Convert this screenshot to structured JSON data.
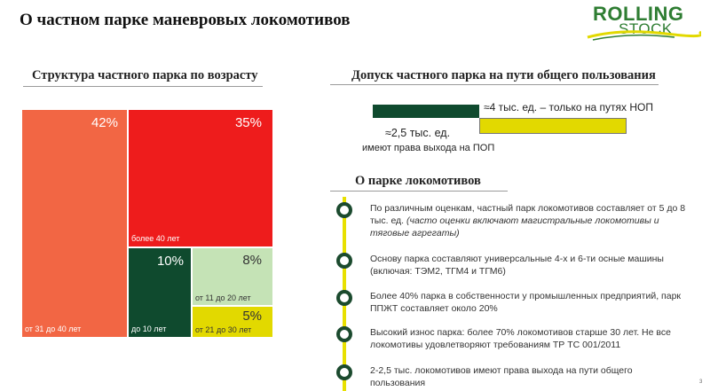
{
  "header": {
    "title": "О частном парке маневровых локомотивов",
    "logo_line1": "ROLLING",
    "logo_line2": "STOCK"
  },
  "age_structure": {
    "title": "Структура частного парка по возрасту",
    "segments": [
      {
        "percent": "42%",
        "label": "от 31 до 40 лет",
        "color": "#f26644"
      },
      {
        "percent": "35%",
        "label": "более 40 лет",
        "color": "#ee1c1c"
      },
      {
        "percent": "10%",
        "label": "до 10 лет",
        "color": "#0f4a2e"
      },
      {
        "percent": "8%",
        "label": "от 11 до 20 лет",
        "color": "#c5e3b6"
      },
      {
        "percent": "5%",
        "label": "от 21 до 30 лет",
        "color": "#e2d900"
      }
    ]
  },
  "access": {
    "title": "Допуск частного парка на пути общего пользования",
    "only_nop": "≈4 тыс. ед. – только на путях НОП",
    "pop_value": "≈2,5 тыс. ед.",
    "pop_caption": "имеют права выхода на ПОП",
    "colors": {
      "pop": "#0f4a2e",
      "nop": "#e2d900"
    }
  },
  "fleet": {
    "title": "О парке локомотивов",
    "items": [
      {
        "text": "По различным оценкам, частный парк локомотивов составляет от 5 до 8 тыс. ед.",
        "note": "(часто оценки включают магистральные локомотивы и тяговые агрегаты)"
      },
      {
        "text": "Основу парка составляют универсальные 4-х и 6-ти осные машины (включая: ТЭМ2, ТГМ4 и ТГМ6)"
      },
      {
        "text": "Более 40% парка в собственности у промышленных предприятий, парк ППЖТ составляет около 20%"
      },
      {
        "text": "Высокий износ парка: более 70% локомотивов старше 30 лет. Не все локомотивы удовлетворяют требованиям ТР ТС 001/2011"
      },
      {
        "text": "2-2,5 тыс. локомотивов имеют права выхода на пути общего пользования"
      }
    ]
  },
  "page_number": "3"
}
